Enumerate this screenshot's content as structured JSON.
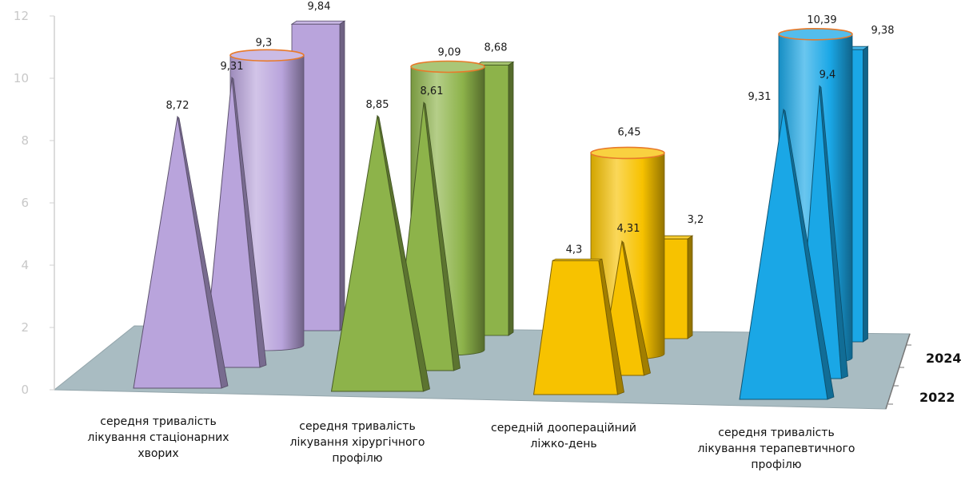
{
  "chart_data": {
    "type": "bar",
    "style": "3d-depth",
    "ylim": [
      0,
      12
    ],
    "yticks": [
      "0",
      "2",
      "4",
      "6",
      "8",
      "10",
      "12"
    ],
    "categories": [
      "середня тривалість лікування стаціонарних хворих",
      "середня тривалість лікування хірургічного профілю",
      "середній доопераційний ліжко-день",
      "середня тривалість лікування терапевтичного профілю"
    ],
    "depth_axis": [
      "2022",
      "2024"
    ],
    "colors": [
      "#b9a4dc",
      "#8db34a",
      "#f7c200",
      "#1aa7e6"
    ],
    "series": [
      {
        "name": "2022",
        "shape": "pyramid",
        "values": [
          8.72,
          8.85,
          4.3,
          9.31
        ],
        "labels": [
          "8,72",
          "8,85",
          "4,3",
          "9,31"
        ]
      },
      {
        "name": "",
        "shape": "pyramid",
        "values": [
          9.31,
          8.61,
          4.31,
          9.4
        ],
        "labels": [
          "9,31",
          "8,61",
          "4,31",
          "9,4"
        ]
      },
      {
        "name": "",
        "shape": "cylinder",
        "values": [
          9.3,
          9.09,
          6.45,
          10.39
        ],
        "labels": [
          "9,3",
          "9,09",
          "6,45",
          "10,39"
        ]
      },
      {
        "name": "2024",
        "shape": "box",
        "values": [
          9.84,
          8.68,
          3.2,
          9.38
        ],
        "labels": [
          "9,84",
          "8,68",
          "3,2",
          "9,38"
        ]
      }
    ]
  }
}
